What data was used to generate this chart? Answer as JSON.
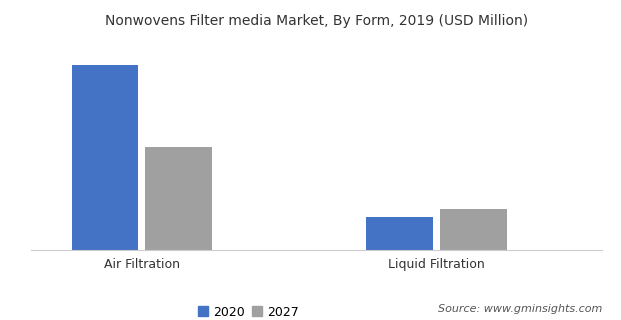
{
  "title": "Nonwovens Filter media Market, By Form, 2019 (USD Million)",
  "categories": [
    "Air Filtration",
    "Liquid Filtration"
  ],
  "series": {
    "2020": [
      3500,
      620
    ],
    "2027": [
      1950,
      760
    ]
  },
  "colors": {
    "2020": "#4472C4",
    "2027": "#A0A0A0"
  },
  "bar_width": 0.18,
  "ylim": [
    0,
    4000
  ],
  "legend_labels": [
    "2020",
    "2027"
  ],
  "source_text": "Source: www.gminsights.com",
  "background_color": "#ffffff",
  "title_fontsize": 10,
  "tick_fontsize": 9,
  "legend_fontsize": 9,
  "source_fontsize": 8
}
